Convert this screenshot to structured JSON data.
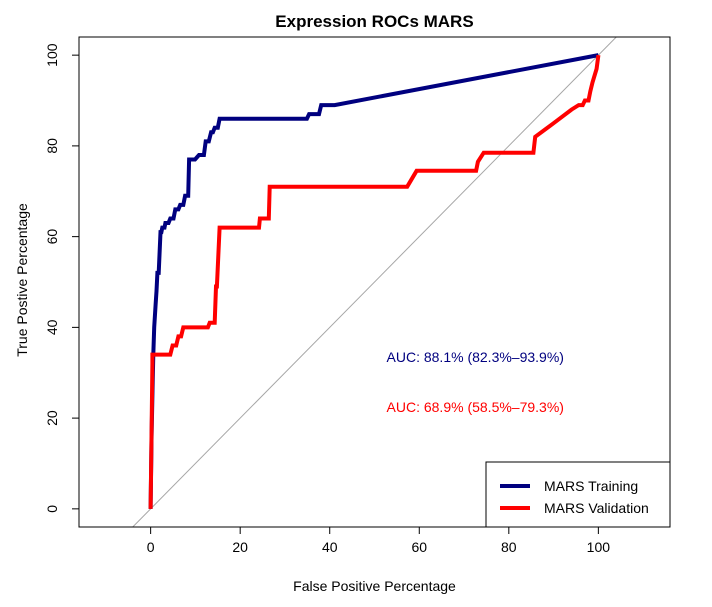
{
  "chart_data": {
    "type": "line",
    "title": "Expression ROCs MARS",
    "xlabel": "False Positive Percentage",
    "ylabel": "True Postive Percentage",
    "xlim": [
      -16,
      116
    ],
    "ylim": [
      -4,
      104
    ],
    "xticks": [
      "0",
      "20",
      "40",
      "60",
      "80",
      "100"
    ],
    "yticks": [
      "0",
      "20",
      "40",
      "60",
      "80",
      "100"
    ],
    "grid": false,
    "legend_position": "bottom-right",
    "reference_line": {
      "from": [
        -4,
        -4
      ],
      "to": [
        104,
        104
      ],
      "color": "#a6a6a6"
    },
    "series": [
      {
        "name": "MARS Training",
        "color": "#00007f",
        "x": [
          0,
          0.2,
          0.4,
          0.6,
          0.8,
          1.1,
          1.3,
          1.5,
          1.8,
          2.2,
          2.4,
          2.6,
          3.1,
          3.3,
          4.0,
          4.4,
          5.1,
          5.5,
          6.2,
          6.6,
          7.3,
          7.7,
          8.4,
          8.6,
          9.9,
          10.8,
          11.9,
          12.3,
          13.0,
          13.5,
          13.9,
          14.3,
          15.0,
          15.4,
          34.9,
          35.4,
          37.6,
          38.1,
          41.1,
          100
        ],
        "y": [
          0,
          15,
          25,
          34,
          40,
          45,
          48,
          52,
          52,
          61,
          61,
          62,
          62,
          63,
          63,
          64,
          64,
          66,
          66,
          67,
          67,
          69,
          69,
          77,
          77,
          78,
          78,
          81,
          81,
          83,
          83,
          84,
          84,
          86,
          86,
          87,
          87,
          89,
          89,
          100
        ]
      },
      {
        "name": "MARS Validation",
        "color": "#ff0000",
        "x": [
          0,
          0.4,
          0.4,
          4.4,
          4.9,
          5.7,
          6.2,
          6.8,
          7.3,
          12.8,
          13.2,
          14.3,
          14.6,
          14.8,
          15.4,
          24.2,
          24.4,
          26.4,
          26.6,
          57.3,
          59.4,
          72.7,
          73.1,
          74.4,
          85.5,
          85.9,
          90.0,
          94.0,
          95.6,
          96.5,
          97.0,
          97.8,
          98.2,
          98.7,
          99.6,
          100
        ],
        "y": [
          0,
          32,
          34,
          34,
          36,
          36,
          38,
          38,
          40,
          40,
          41,
          41,
          49,
          49,
          62,
          62,
          64,
          64,
          71,
          71,
          74.5,
          74.5,
          76.5,
          78.5,
          78.5,
          82,
          85,
          88,
          89,
          89,
          90,
          90,
          92,
          94,
          97,
          100
        ]
      }
    ],
    "annotations": [
      {
        "text": "AUC: 88.1% (82.3%–93.9%)",
        "x": 72.5,
        "y": 33.5,
        "color": "#00007f"
      },
      {
        "text": "AUC: 68.9% (58.5%–79.3%)",
        "x": 72.5,
        "y": 22.5,
        "color": "#ff0000"
      }
    ]
  }
}
